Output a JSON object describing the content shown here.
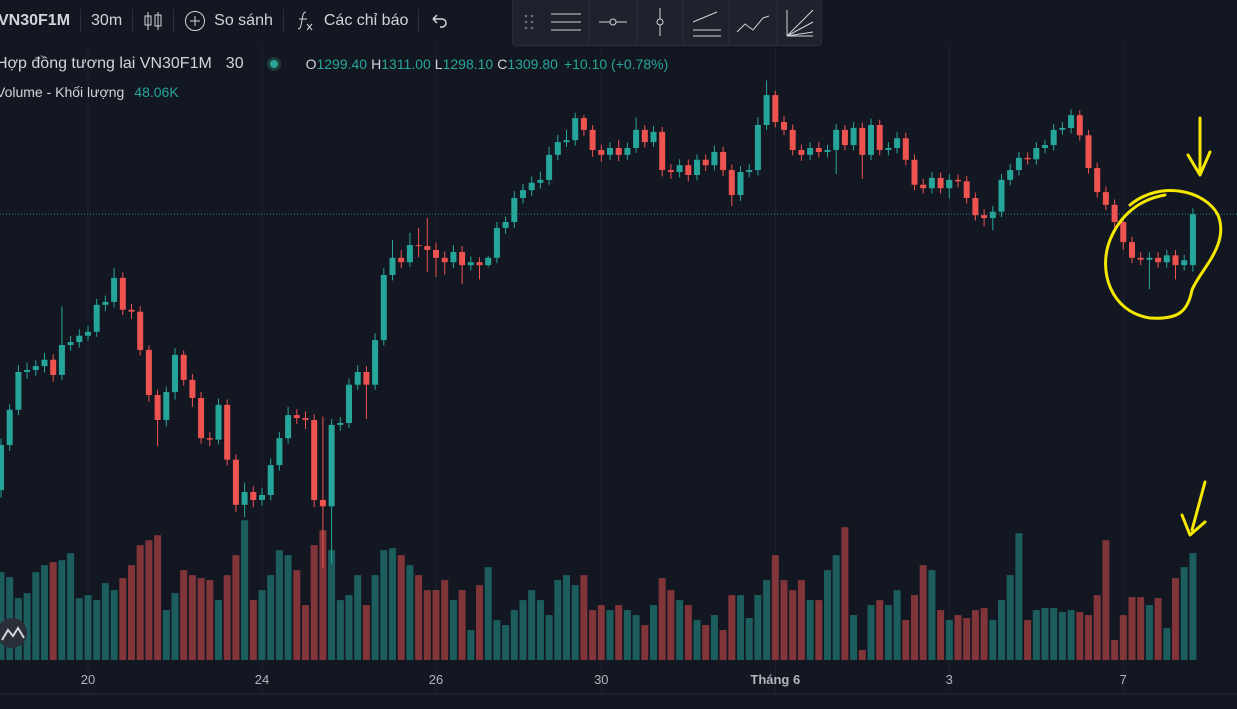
{
  "toolbar": {
    "symbol": "VN30F1M",
    "interval": "30m",
    "compare": "So sánh",
    "indicators": "Các chỉ báo"
  },
  "chart_data": {
    "type": "candlestick",
    "title": "Hợp đồng tương lai VN30F1M",
    "interval": "30",
    "ohlc_legend": [
      {
        "key": "O",
        "text": "1299.40"
      },
      {
        "key": "H",
        "text": "1311.00"
      },
      {
        "key": "L",
        "text": "1298.10"
      },
      {
        "key": "C",
        "text": "1309.80"
      }
    ],
    "change": "+10.10 (+0.78%)",
    "up_color": "#26a69a",
    "down_color": "#ef5350",
    "ylim": [
      1242.3,
      1353.5
    ],
    "last_price_line": true,
    "categories": [
      null,
      null,
      null,
      null,
      null,
      null,
      null,
      null,
      null,
      null,
      "20",
      null,
      null,
      null,
      null,
      null,
      null,
      null,
      null,
      null,
      null,
      null,
      null,
      null,
      null,
      null,
      null,
      null,
      null,
      null,
      "24",
      null,
      null,
      null,
      null,
      null,
      null,
      null,
      null,
      null,
      null,
      null,
      null,
      null,
      null,
      null,
      null,
      null,
      null,
      null,
      "26",
      null,
      null,
      null,
      null,
      null,
      null,
      null,
      null,
      null,
      null,
      null,
      null,
      null,
      null,
      null,
      null,
      null,
      null,
      "30",
      null,
      null,
      null,
      null,
      null,
      null,
      null,
      null,
      null,
      null,
      null,
      null,
      null,
      null,
      null,
      null,
      null,
      null,
      null,
      "Tháng 6",
      null,
      null,
      null,
      null,
      null,
      null,
      null,
      null,
      null,
      null,
      null,
      null,
      null,
      null,
      null,
      null,
      null,
      null,
      null,
      "3",
      null,
      null,
      null,
      null,
      null,
      null,
      null,
      null,
      null,
      null,
      null,
      null,
      null,
      null,
      null,
      null,
      null,
      null,
      null,
      "7",
      null,
      null,
      null,
      null,
      null,
      null,
      null,
      null
    ],
    "open": [
      1253.5,
      1262.7,
      1269.9,
      1277.6,
      1278.0,
      1278.8,
      1280.1,
      1277.0,
      1283.1,
      1283.7,
      1285.0,
      1285.8,
      1291.3,
      1291.9,
      1296.8,
      1290.3,
      1289.9,
      1282.1,
      1272.9,
      1267.8,
      1273.5,
      1281.1,
      1276.0,
      1272.3,
      1264.1,
      1263.8,
      1270.9,
      1259.7,
      1250.5,
      1253.1,
      1251.5,
      1252.5,
      1258.6,
      1264.1,
      1268.8,
      1268.2,
      1267.8,
      1251.5,
      1250.2,
      1266.8,
      1267.2,
      1275.0,
      1277.6,
      1275.0,
      1284.1,
      1297.4,
      1300.9,
      1300.0,
      1303.5,
      1303.3,
      1302.5,
      1300.9,
      1300.0,
      1302.1,
      1299.4,
      1300.0,
      1299.4,
      1300.9,
      1307.0,
      1308.2,
      1313.1,
      1314.7,
      1316.2,
      1316.8,
      1321.9,
      1324.5,
      1324.9,
      1329.4,
      1327.0,
      1322.9,
      1321.9,
      1323.3,
      1321.9,
      1323.3,
      1327.0,
      1324.5,
      1326.6,
      1318.8,
      1318.4,
      1319.8,
      1317.8,
      1320.9,
      1319.8,
      1322.5,
      1318.8,
      1313.7,
      1318.4,
      1318.8,
      1328.0,
      1334.1,
      1328.6,
      1327.0,
      1322.9,
      1321.9,
      1323.3,
      1322.5,
      1322.9,
      1327.0,
      1323.9,
      1327.4,
      1321.9,
      1328.0,
      1322.9,
      1323.3,
      1325.3,
      1320.9,
      1315.8,
      1315.1,
      1317.2,
      1315.1,
      1316.8,
      1316.5,
      1313.1,
      1309.6,
      1309.0,
      1310.3,
      1316.8,
      1318.8,
      1321.3,
      1321.0,
      1323.3,
      1323.9,
      1327.0,
      1327.4,
      1330.0,
      1325.9,
      1319.2,
      1314.3,
      1311.7,
      1308.2,
      1304.1,
      1300.9,
      1300.5,
      1300.9,
      1300.0,
      1301.4,
      1299.4,
      1299.4
    ],
    "high": [
      1264.0,
      1271.0,
      1279.0,
      1279.5,
      1280.0,
      1281.5,
      1281.2,
      1291.0,
      1285.0,
      1286.3,
      1287.0,
      1292.5,
      1293.2,
      1298.8,
      1297.9,
      1291.5,
      1291.0,
      1283.0,
      1274.0,
      1274.6,
      1282.5,
      1282.0,
      1277.2,
      1273.5,
      1265.3,
      1272.2,
      1272.0,
      1260.8,
      1255.0,
      1254.3,
      1254.0,
      1260.0,
      1265.4,
      1270.5,
      1270.0,
      1269.6,
      1269.0,
      1268.5,
      1268.0,
      1268.4,
      1276.3,
      1279.0,
      1278.8,
      1285.5,
      1298.8,
      1304.5,
      1302.5,
      1306.0,
      1307.0,
      1309.0,
      1304.0,
      1302.2,
      1303.5,
      1303.3,
      1301.2,
      1301.0,
      1301.3,
      1308.2,
      1309.3,
      1314.5,
      1316.0,
      1317.5,
      1318.5,
      1323.5,
      1326.0,
      1327.0,
      1330.5,
      1330.0,
      1328.0,
      1324.0,
      1324.5,
      1325.0,
      1324.4,
      1329.5,
      1328.0,
      1327.8,
      1327.6,
      1320.0,
      1321.0,
      1321.0,
      1322.0,
      1322.0,
      1323.8,
      1323.6,
      1319.9,
      1319.6,
      1320.0,
      1329.6,
      1337.1,
      1335.0,
      1329.8,
      1328.1,
      1324.0,
      1324.5,
      1324.5,
      1324.0,
      1328.2,
      1328.0,
      1328.6,
      1328.5,
      1329.3,
      1329.1,
      1324.5,
      1326.5,
      1326.4,
      1322.0,
      1317.0,
      1318.4,
      1318.3,
      1318.0,
      1317.9,
      1317.6,
      1314.2,
      1310.8,
      1311.5,
      1318.0,
      1320.0,
      1322.5,
      1322.4,
      1324.5,
      1325.0,
      1328.2,
      1328.6,
      1331.2,
      1331.0,
      1327.0,
      1320.3,
      1315.4,
      1312.8,
      1309.3,
      1305.2,
      1302.0,
      1302.0,
      1302.0,
      1302.5,
      1302.5,
      1301.5,
      1311.0
    ],
    "low": [
      1252.0,
      1261.5,
      1268.8,
      1276.2,
      1276.8,
      1277.5,
      1275.6,
      1276.0,
      1282.0,
      1282.6,
      1284.0,
      1284.8,
      1290.0,
      1290.8,
      1289.2,
      1288.4,
      1281.0,
      1271.5,
      1262.5,
      1266.5,
      1272.0,
      1274.8,
      1270.5,
      1263.0,
      1262.5,
      1262.8,
      1258.5,
      1249.0,
      1248.0,
      1250.0,
      1250.3,
      1251.4,
      1257.5,
      1263.0,
      1267.0,
      1266.0,
      1250.0,
      1237.5,
      1238.5,
      1265.6,
      1266.2,
      1274.0,
      1268.0,
      1274.0,
      1283.0,
      1296.3,
      1298.8,
      1299.0,
      1301.0,
      1298.0,
      1297.0,
      1297.5,
      1298.8,
      1295.5,
      1298.3,
      1296.5,
      1299.0,
      1299.8,
      1305.8,
      1307.0,
      1312.0,
      1313.5,
      1315.0,
      1315.8,
      1320.8,
      1323.5,
      1323.8,
      1325.8,
      1321.5,
      1320.5,
      1320.8,
      1320.6,
      1320.9,
      1322.3,
      1323.4,
      1323.5,
      1317.5,
      1317.0,
      1317.3,
      1316.5,
      1316.7,
      1318.6,
      1318.7,
      1317.6,
      1311.5,
      1312.5,
      1317.3,
      1317.7,
      1327.0,
      1327.5,
      1325.9,
      1321.8,
      1320.7,
      1320.8,
      1321.4,
      1321.4,
      1318.0,
      1322.8,
      1322.8,
      1317.0,
      1320.8,
      1321.8,
      1321.8,
      1322.2,
      1319.8,
      1314.7,
      1314.0,
      1314.0,
      1314.0,
      1313.0,
      1315.3,
      1312.0,
      1308.5,
      1307.3,
      1306.5,
      1309.2,
      1315.7,
      1317.7,
      1319.9,
      1319.9,
      1322.2,
      1322.8,
      1326.0,
      1326.3,
      1324.8,
      1318.1,
      1313.2,
      1310.6,
      1307.1,
      1302.5,
      1299.8,
      1299.4,
      1294.5,
      1298.9,
      1298.9,
      1296.5,
      1298.3,
      1298.1
    ],
    "close": [
      1262.7,
      1269.9,
      1277.6,
      1278.0,
      1278.8,
      1280.1,
      1277.0,
      1283.1,
      1283.7,
      1285.0,
      1285.8,
      1291.3,
      1291.9,
      1296.8,
      1290.3,
      1289.9,
      1282.1,
      1272.9,
      1267.8,
      1273.5,
      1281.1,
      1276.0,
      1272.3,
      1264.1,
      1263.8,
      1270.9,
      1259.7,
      1250.5,
      1253.1,
      1251.5,
      1252.5,
      1258.6,
      1264.1,
      1268.8,
      1268.2,
      1267.8,
      1251.5,
      1250.2,
      1266.8,
      1267.2,
      1275.0,
      1277.6,
      1275.0,
      1284.1,
      1297.4,
      1300.9,
      1300.0,
      1303.5,
      1303.3,
      1302.5,
      1300.9,
      1300.0,
      1302.1,
      1299.4,
      1300.0,
      1299.4,
      1300.9,
      1307.0,
      1308.2,
      1313.1,
      1314.7,
      1316.2,
      1316.8,
      1321.9,
      1324.5,
      1324.9,
      1329.4,
      1327.0,
      1322.9,
      1321.9,
      1323.3,
      1321.9,
      1323.3,
      1327.0,
      1324.5,
      1326.6,
      1318.8,
      1318.4,
      1319.8,
      1317.8,
      1320.9,
      1319.8,
      1322.5,
      1318.8,
      1313.7,
      1318.4,
      1318.8,
      1328.0,
      1334.1,
      1328.6,
      1327.0,
      1322.9,
      1321.9,
      1323.3,
      1322.5,
      1322.9,
      1327.0,
      1323.9,
      1327.4,
      1321.9,
      1328.0,
      1322.9,
      1323.3,
      1325.3,
      1320.9,
      1315.8,
      1315.1,
      1317.2,
      1315.1,
      1316.8,
      1316.5,
      1313.1,
      1309.6,
      1309.0,
      1310.3,
      1316.8,
      1318.8,
      1321.3,
      1321.0,
      1323.3,
      1323.9,
      1327.0,
      1327.4,
      1330.0,
      1325.9,
      1319.2,
      1314.3,
      1311.7,
      1308.2,
      1304.1,
      1300.9,
      1300.5,
      1300.9,
      1300.0,
      1301.4,
      1299.4,
      1300.4,
      1309.8
    ],
    "volume": {
      "name": "Volume - Khối lượng",
      "last_label": "48.06K",
      "ylim": [
        0,
        72000
      ],
      "values": [
        39530,
        37280,
        27850,
        30100,
        39530,
        42670,
        44020,
        44920,
        48060,
        27850,
        29200,
        26950,
        34590,
        31440,
        36830,
        42670,
        51660,
        53900,
        56150,
        22460,
        30100,
        40430,
        38180,
        36830,
        35940,
        26950,
        38180,
        47170,
        62890,
        26950,
        31440,
        38180,
        49410,
        47170,
        40430,
        24710,
        51660,
        58400,
        49410,
        26950,
        29200,
        38180,
        24710,
        38180,
        49410,
        50310,
        47170,
        42670,
        38180,
        31440,
        31440,
        35940,
        26950,
        31440,
        13480,
        33690,
        41780,
        17970,
        15720,
        22460,
        26950,
        31440,
        26950,
        20210,
        35940,
        38180,
        33690,
        38180,
        22460,
        24710,
        22460,
        24710,
        22460,
        20210,
        15720,
        24710,
        36830,
        31440,
        26950,
        24710,
        17970,
        15720,
        20210,
        13480,
        29200,
        29200,
        18870,
        29200,
        35940,
        47170,
        35940,
        31440,
        35940,
        26950,
        26950,
        40430,
        47170,
        59740,
        20210,
        4490,
        24710,
        26950,
        24710,
        31440,
        17970,
        29200,
        42670,
        40430,
        22460,
        17970,
        20210,
        18870,
        22460,
        23360,
        17970,
        26950,
        38180,
        57050,
        17970,
        22460,
        23360,
        23360,
        21560,
        22460,
        21560,
        20210,
        29200,
        53900,
        8980,
        20210,
        28300,
        28300,
        24710,
        27850,
        14370,
        36830,
        41780,
        48060
      ]
    }
  }
}
